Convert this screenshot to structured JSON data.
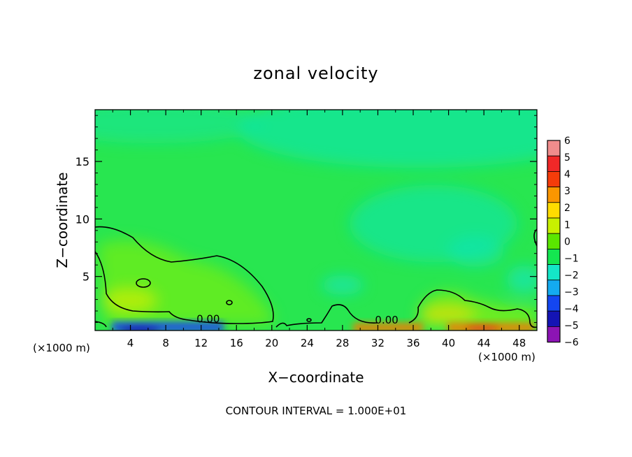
{
  "chart_data": {
    "type": "heatmap",
    "title": "zonal velocity",
    "xlabel": "X−coordinate",
    "ylabel": "Z−coordinate",
    "x_unit_left": "(×1000 m)",
    "x_unit_right": "(×1000 m)",
    "xlim": [
      0,
      50
    ],
    "ylim": [
      0.3,
      19.5
    ],
    "x_ticks": [
      4,
      8,
      12,
      16,
      20,
      24,
      28,
      32,
      36,
      40,
      44,
      48
    ],
    "y_ticks": [
      5,
      10,
      15
    ],
    "contour_interval_text": "CONTOUR INTERVAL = 1.000E+01",
    "contour_labels": [
      {
        "x": 12.8,
        "y": 1.3,
        "text": "0.00"
      },
      {
        "x": 33.0,
        "y": 1.2,
        "text": "0.00"
      }
    ],
    "colorbar": {
      "levels": [
        6,
        5,
        4,
        3,
        2,
        1,
        0,
        -1,
        -2,
        -3,
        -4,
        -5,
        -6
      ],
      "labels": [
        "6",
        "5",
        "4",
        "3",
        "2",
        "1",
        "0",
        "−1",
        "−2",
        "−3",
        "−4",
        "−5",
        "−6"
      ],
      "colors": [
        "#f08c8c",
        "#f02828",
        "#f53c0a",
        "#fa9600",
        "#ffdc00",
        "#c8f000",
        "#5ae600",
        "#14e650",
        "#14e6c8",
        "#14aaf0",
        "#1446f0",
        "#1414b4",
        "#8c14b4"
      ]
    },
    "field": {
      "background_color": "#28e650",
      "regions": [
        {
          "level": -1,
          "color": "#14e6a0",
          "note": "upper layer",
          "x": [
            0,
            50
          ],
          "y": [
            15,
            19.5
          ]
        },
        {
          "level": -1,
          "color": "#14e6a0",
          "x": [
            33,
            50
          ],
          "y": [
            7,
            14
          ]
        },
        {
          "level": 1,
          "color": "#8cf000",
          "x": [
            1,
            19
          ],
          "y": [
            0.8,
            8
          ]
        },
        {
          "level": 1,
          "color": "#8cf000",
          "x": [
            36,
            50
          ],
          "y": [
            0.4,
            3.6
          ]
        },
        {
          "level": -4,
          "color": "#1446f0",
          "x": [
            2,
            20
          ],
          "y": [
            0.3,
            0.7
          ]
        },
        {
          "level": 3,
          "color": "#fa6400",
          "x": [
            29,
            50
          ],
          "y": [
            0.3,
            0.7
          ]
        }
      ]
    }
  }
}
